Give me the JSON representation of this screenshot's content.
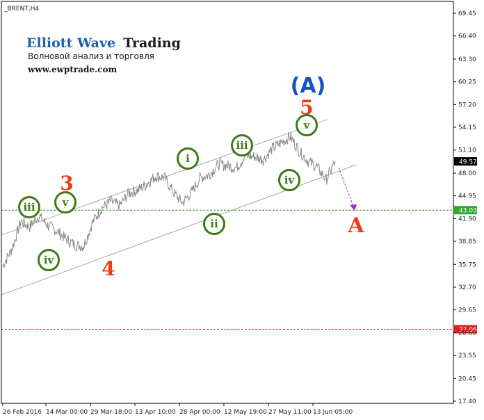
{
  "symbol_label": "_BRENT,H4",
  "branding": {
    "title_part1": "Elliott Wave",
    "title_part2": "Trading",
    "subtitle": "Волновой анализ и торговля",
    "website": "www.ewptrade.com"
  },
  "colors": {
    "price_line": "#8a8a8a",
    "channel": "#9a9a9a",
    "green_level": "#2e8b2e",
    "red_level": "#d42020",
    "wave_red": "#f03c14",
    "wave_blue": "#1552c8",
    "roman_green": "#3d7a14",
    "projection": "#9b30d0"
  },
  "chart_data": {
    "type": "line",
    "ylim": [
      16.5,
      70.5
    ],
    "y_ticks": [
      "69.45",
      "66.40",
      "63.30",
      "60.25",
      "57.20",
      "54.15",
      "51.10",
      "48.00",
      "44.95",
      "41.90",
      "38.85",
      "35.75",
      "32.70",
      "29.65",
      "26.60",
      "23.55",
      "20.45",
      "17.40"
    ],
    "x_ticks": [
      "26 Feb 2016",
      "14 Mar 00:00",
      "29 Mar 18:00",
      "13 Apr 10:00",
      "28 Apr 00:00",
      "12 May 19:00",
      "27 May 11:00",
      "13 Jun 05:00"
    ],
    "series": [
      {
        "x": [
          "26 Feb 2016",
          "3 Mar",
          "9 Mar",
          "12 Mar",
          "16 Mar",
          "20 Mar",
          "25 Mar",
          "29 Mar",
          "1 Apr",
          "5 Apr",
          "8 Apr",
          "11 Apr",
          "14 Apr",
          "17 Apr",
          "19 Apr",
          "22 Apr",
          "25 Apr",
          "27 Apr",
          "29 Apr",
          "2 May",
          "5 May",
          "9 May",
          "12 May",
          "14 May",
          "17 May",
          "20 May",
          "23 May",
          "26 May",
          "28 May",
          "30 May",
          "2 Jun",
          "5 Jun",
          "7 Jun",
          "9 Jun",
          "12 Jun",
          "14 Jun",
          "15 Jun",
          "17 Jun"
        ],
        "values": [
          35.6,
          37.8,
          41.5,
          40.8,
          42.3,
          41.0,
          40.3,
          39.2,
          38.4,
          38.2,
          41.4,
          43.3,
          44.2,
          43.6,
          45.3,
          45.7,
          46.5,
          47.6,
          47.4,
          45.4,
          44.0,
          45.4,
          47.4,
          47.8,
          49.2,
          49.0,
          48.7,
          50.3,
          50.2,
          49.8,
          51.3,
          52.1,
          52.9,
          51.0,
          49.6,
          48.8,
          47.1,
          49.57
        ]
      }
    ],
    "horizontal_levels": [
      43.03,
      27.06
    ],
    "current_price": "49.57",
    "level_labels": [
      "43.03",
      "27.06"
    ],
    "annotations": {
      "red": [
        "3",
        "4",
        "5",
        "A"
      ],
      "blue": [
        "(A)"
      ],
      "green_circles": [
        "iii",
        "v",
        "iv",
        "i",
        "ii",
        "iii",
        "iv",
        "v"
      ]
    }
  }
}
